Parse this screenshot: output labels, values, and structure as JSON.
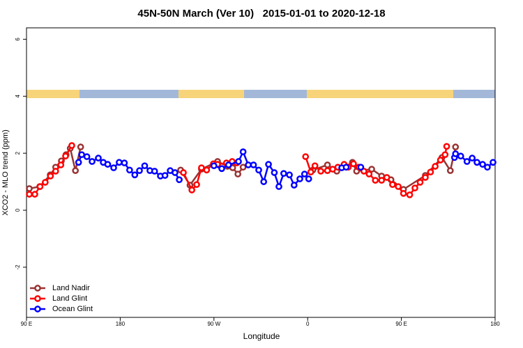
{
  "chart_data": {
    "type": "line",
    "title": "45N-50N March (Ver 10)   2015-01-01 to 2020-12-18",
    "x_label": "Longitude",
    "y_label": "XCO2 - MLO trend (ppm)",
    "xlim": [
      90,
      540
    ],
    "ylim": [
      -3.76,
      6.4
    ],
    "xticks": [
      {
        "value": 90,
        "label": "90 E"
      },
      180,
      {
        "value": 270,
        "label": "90 W"
      },
      {
        "value": 360,
        "label": "0"
      },
      {
        "value": 450,
        "label": "90 E"
      },
      {
        "value": 540,
        "label": "180"
      }
    ],
    "yticks": [
      -2,
      0,
      2,
      4,
      6
    ],
    "legend": "bottom-left",
    "series": [
      {
        "name": "Land Nadir",
        "color": "#993333",
        "x": [
          92.7,
          102.7,
          112.8,
          118,
          123.5,
          128,
          132,
          137,
          142,
          null,
          238,
          247,
          258,
          273.5,
          283,
          288,
          293,
          298,
          null,
          365,
          379,
          388,
          403,
          407,
          421.5,
          431,
          440,
          452,
          473,
          489,
          497,
          502
        ],
        "values": [
          0.76,
          0.83,
          1.24,
          1.51,
          1.73,
          1.95,
          2.17,
          1.39,
          2.22,
          null,
          1.41,
          0.88,
          1.44,
          1.71,
          1.54,
          1.49,
          1.27,
          1.51,
          null,
          1.41,
          1.59,
          1.37,
          1.68,
          1.37,
          1.44,
          1.2,
          1.07,
          0.73,
          1.22,
          1.85,
          1.39,
          2.22
        ]
      },
      {
        "name": "Land Glint",
        "color": "#ff0000",
        "x": [
          92.7,
          98,
          103,
          108,
          113,
          118,
          123,
          127.5,
          133.5,
          null,
          240.7,
          248.8,
          253.4,
          258,
          263,
          269.5,
          273.5,
          282,
          287.5,
          292,
          null,
          358,
          363,
          367,
          372.6,
          379,
          384,
          389,
          395,
          399,
          404,
          409,
          414,
          419,
          425,
          431,
          436,
          441.5,
          447,
          452,
          458,
          463,
          468,
          473,
          478,
          482.5,
          487.5,
          492,
          493.5
        ],
        "values": [
          0.56,
          0.56,
          0.83,
          0.98,
          1.2,
          1.37,
          1.59,
          1.9,
          2.27,
          null,
          1.32,
          0.71,
          0.9,
          1.49,
          1.41,
          1.63,
          1.61,
          1.66,
          1.71,
          1.66,
          null,
          1.88,
          1.34,
          1.56,
          1.37,
          1.39,
          1.44,
          1.51,
          1.61,
          1.51,
          1.63,
          1.51,
          1.37,
          1.27,
          1.05,
          1.05,
          1.15,
          0.9,
          0.83,
          0.59,
          0.54,
          0.78,
          0.98,
          1.15,
          1.34,
          1.54,
          1.76,
          1.95,
          2.24
        ]
      },
      {
        "name": "Ocean Glint",
        "color": "#0000ff",
        "x": [
          140,
          143,
          148,
          153,
          159,
          163.7,
          168,
          173.7,
          179,
          184,
          189,
          194,
          198.5,
          203.5,
          208.5,
          213,
          218.6,
          223,
          228,
          232.6,
          236.7,
          null,
          270,
          277.5,
          284,
          293.6,
          298,
          303,
          308,
          313,
          317.8,
          322.4,
          328,
          332.4,
          337,
          342.5,
          347,
          352.5,
          357,
          361,
          null,
          392.7,
          397,
          null,
          411,
          null,
          501,
          502,
          507,
          513,
          518,
          522.6,
          528,
          532.6,
          538
        ],
        "values": [
          1.68,
          1.95,
          1.88,
          1.71,
          1.83,
          1.68,
          1.61,
          1.49,
          1.68,
          1.66,
          1.41,
          1.24,
          1.39,
          1.56,
          1.39,
          1.37,
          1.2,
          1.22,
          1.39,
          1.32,
          1.07,
          null,
          1.56,
          1.46,
          1.59,
          1.71,
          2.05,
          1.59,
          1.59,
          1.41,
          1.0,
          1.61,
          1.32,
          0.83,
          1.29,
          1.24,
          0.88,
          1.1,
          1.27,
          1.1,
          null,
          1.49,
          1.51,
          null,
          1.51,
          null,
          1.85,
          1.98,
          1.9,
          1.71,
          1.83,
          1.68,
          1.61,
          1.51,
          1.68
        ]
      }
    ]
  }
}
